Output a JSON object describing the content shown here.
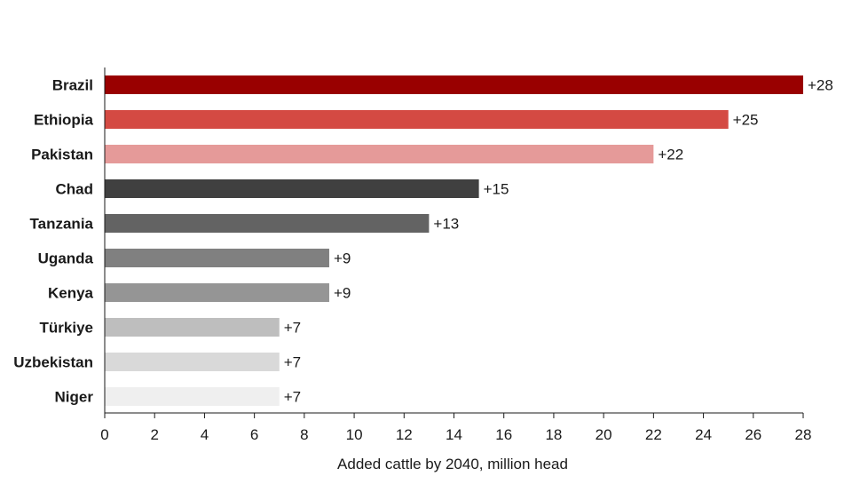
{
  "chart_data": {
    "type": "bar",
    "orientation": "horizontal",
    "title": "",
    "xlabel": "Added cattle by 2040, million head",
    "ylabel": "",
    "xlim": [
      0,
      28
    ],
    "xticks": [
      0,
      2,
      4,
      6,
      8,
      10,
      12,
      14,
      16,
      18,
      20,
      22,
      24,
      26,
      28
    ],
    "grid": false,
    "legend": "none",
    "categories": [
      "Brazil",
      "Ethiopia",
      "Pakistan",
      "Chad",
      "Tanzania",
      "Uganda",
      "Kenya",
      "Türkiye",
      "Uzbekistan",
      "Niger"
    ],
    "values": [
      28,
      25,
      22,
      15,
      13,
      9,
      9,
      7,
      7,
      7
    ],
    "data_labels": [
      "+28",
      "+25",
      "+22",
      "+15",
      "+13",
      "+9",
      "+9",
      "+7",
      "+7",
      "+7"
    ],
    "colors": [
      "#990000",
      "#d44a43",
      "#e59a99",
      "#404040",
      "#636363",
      "#808080",
      "#959595",
      "#bebebe",
      "#d9d9d9",
      "#efefef"
    ]
  }
}
